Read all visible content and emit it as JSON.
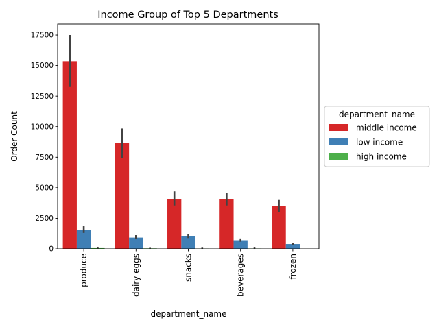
{
  "chart_data": {
    "type": "bar",
    "title": "Income Group of Top 5 Departments",
    "xlabel": "department_name",
    "ylabel": "Order Count",
    "categories": [
      "produce",
      "dairy eggs",
      "snacks",
      "beverages",
      "frozen"
    ],
    "ylim": [
      0,
      18400
    ],
    "yticks": [
      0,
      2500,
      5000,
      7500,
      10000,
      12500,
      15000,
      17500
    ],
    "ytick_labels": [
      "0",
      "2500",
      "5000",
      "7500",
      "10000",
      "12500",
      "15000",
      "17500"
    ],
    "grid": false,
    "legend": {
      "title": "department_name",
      "placement": "center-right outside"
    },
    "series": [
      {
        "name": "middle income",
        "color": "#d62728",
        "values": [
          15350,
          8650,
          4050,
          4050,
          3480
        ],
        "ci": [
          [
            13250,
            17500
          ],
          [
            7450,
            9850
          ],
          [
            3550,
            4700
          ],
          [
            3550,
            4600
          ],
          [
            3000,
            4000
          ]
        ]
      },
      {
        "name": "low income",
        "color": "#3f7fb5",
        "values": [
          1520,
          920,
          1020,
          700,
          390
        ],
        "ci": [
          [
            1300,
            1850
          ],
          [
            800,
            1120
          ],
          [
            880,
            1200
          ],
          [
            580,
            850
          ],
          [
            320,
            480
          ]
        ]
      },
      {
        "name": "high income",
        "color": "#4daf4a",
        "values": [
          60,
          40,
          25,
          30,
          0
        ],
        "ci": [
          [
            10,
            170
          ],
          [
            0,
            90
          ],
          [
            0,
            100
          ],
          [
            0,
            110
          ],
          [
            0,
            0
          ]
        ]
      }
    ]
  }
}
